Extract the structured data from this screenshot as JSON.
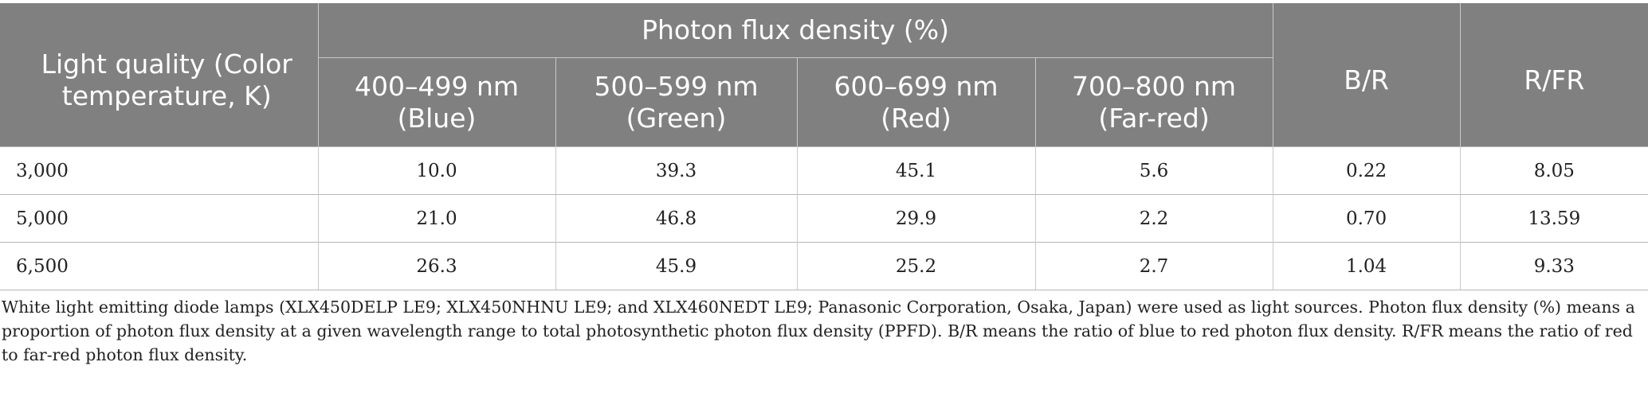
{
  "table": {
    "header": {
      "light_quality": "Light quality (Color temperature, K)",
      "photon_flux_density": "Photon flux density (%)",
      "br": "B/R",
      "rfr": "R/FR",
      "bands": [
        {
          "range": "400–499 nm",
          "name": "(Blue)"
        },
        {
          "range": "500–599 nm",
          "name": "(Green)"
        },
        {
          "range": "600–699 nm",
          "name": "(Red)"
        },
        {
          "range": "700–800 nm",
          "name": "(Far-red)"
        }
      ]
    },
    "rows": [
      {
        "temp": "3,000",
        "blue": "10.0",
        "green": "39.3",
        "red": "45.1",
        "far_red": "5.6",
        "br": "0.22",
        "rfr": "8.05"
      },
      {
        "temp": "5,000",
        "blue": "21.0",
        "green": "46.8",
        "red": "29.9",
        "far_red": "2.2",
        "br": "0.70",
        "rfr": "13.59"
      },
      {
        "temp": "6,500",
        "blue": "26.3",
        "green": "45.9",
        "red": "25.2",
        "far_red": "2.7",
        "br": "1.04",
        "rfr": "9.33"
      }
    ]
  },
  "footnote": "White light emitting diode lamps (XLX450DELP LE9; XLX450NHNU LE9; and XLX460NEDT LE9; Panasonic Corporation, Osaka, Japan) were used as light sources. Photon flux density (%) means a proportion of photon flux density at a given wavelength range to total photosynthetic photon flux density (PPFD). B/R means the ratio of blue to red photon flux density. R/FR means the ratio of red to far-red photon flux density."
}
